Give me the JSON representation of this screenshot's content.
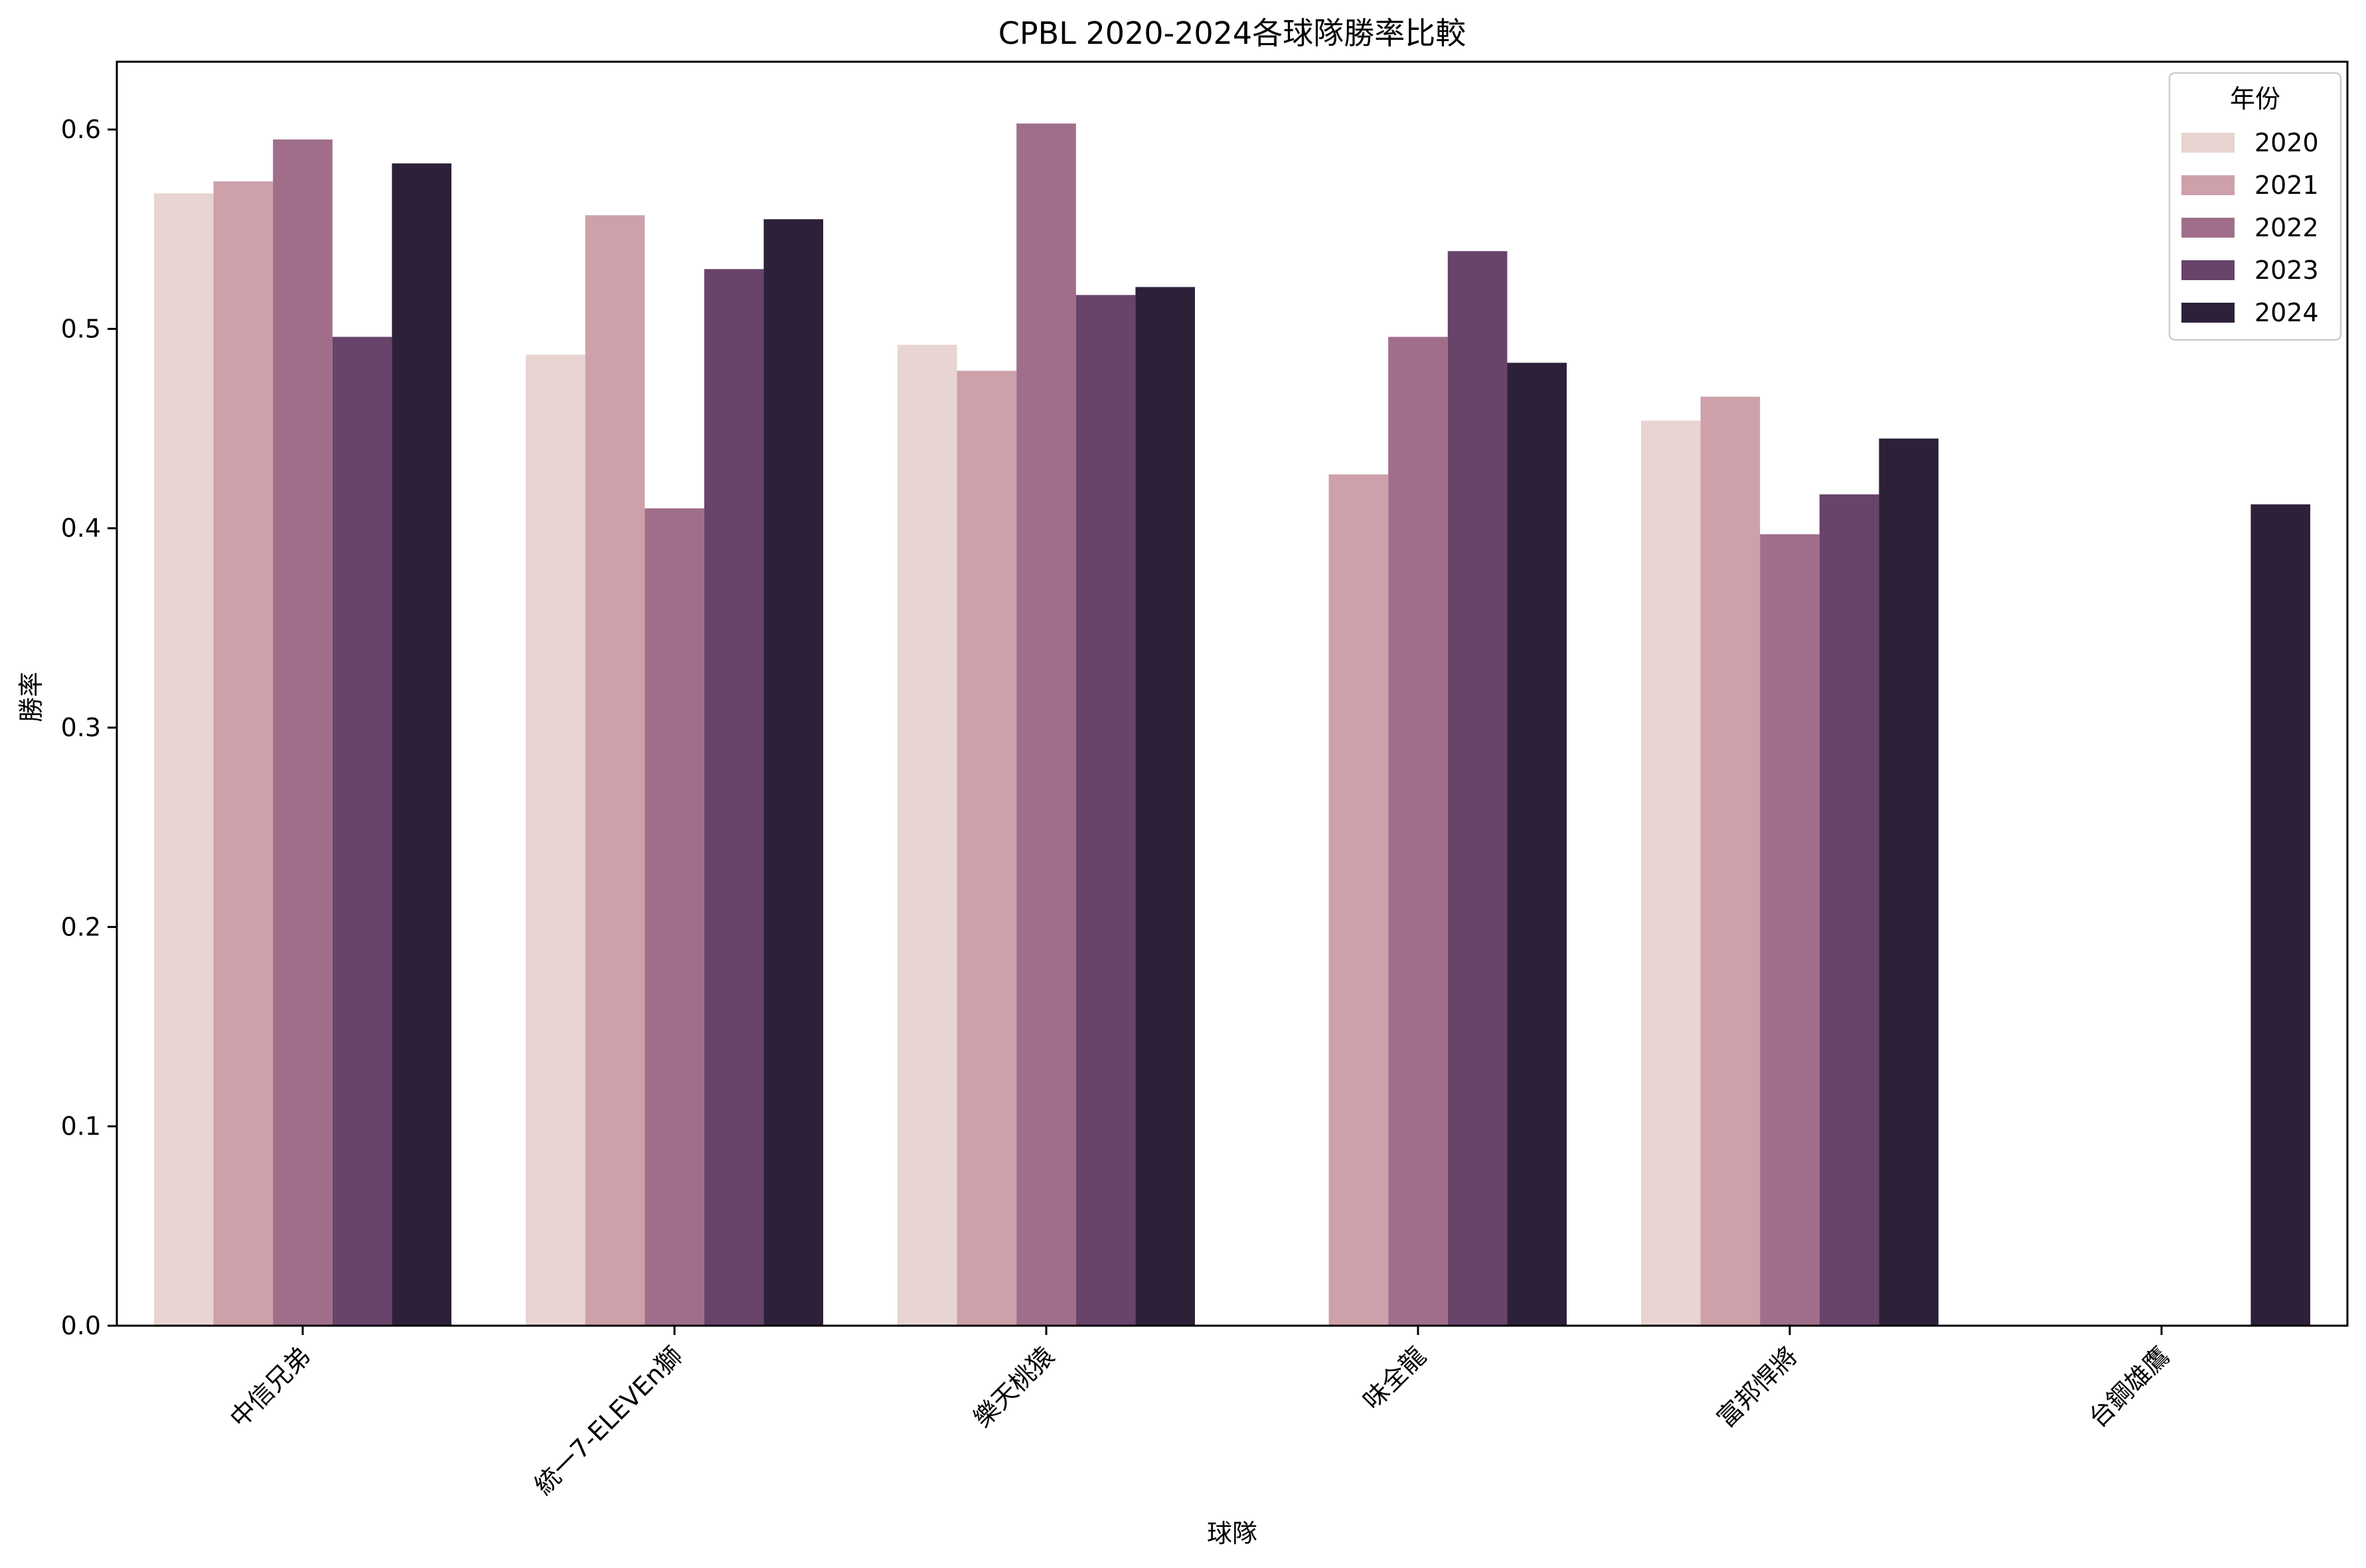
{
  "chart_data": {
    "type": "bar",
    "title": "CPBL 2020-2024各球隊勝率比較",
    "xlabel": "球隊",
    "ylabel": "勝率",
    "ylim": [
      0,
      0.634
    ],
    "yticks": [
      "0.0",
      "0.1",
      "0.2",
      "0.3",
      "0.4",
      "0.5",
      "0.6"
    ],
    "grid": false,
    "legend": {
      "title": "年份",
      "position": "top-right"
    },
    "categories": [
      "中信兄弟",
      "統一7-ELEVEn獅",
      "樂天桃猿",
      "味全龍",
      "富邦悍將",
      "台鋼雄鷹"
    ],
    "series": [
      {
        "name": "2020",
        "color": "#e8d4d0",
        "values": [
          0.568,
          0.487,
          0.492,
          null,
          0.454,
          null
        ]
      },
      {
        "name": "2021",
        "color": "#cda0aa",
        "values": [
          0.574,
          0.557,
          0.479,
          0.427,
          0.466,
          null
        ]
      },
      {
        "name": "2022",
        "color": "#a06e8a",
        "values": [
          0.595,
          0.41,
          0.603,
          0.496,
          0.397,
          null
        ]
      },
      {
        "name": "2023",
        "color": "#68436a",
        "values": [
          0.496,
          0.53,
          0.517,
          0.539,
          0.417,
          null
        ]
      },
      {
        "name": "2024",
        "color": "#2d2039",
        "values": [
          0.583,
          0.555,
          0.521,
          0.483,
          0.445,
          0.412
        ]
      }
    ]
  }
}
